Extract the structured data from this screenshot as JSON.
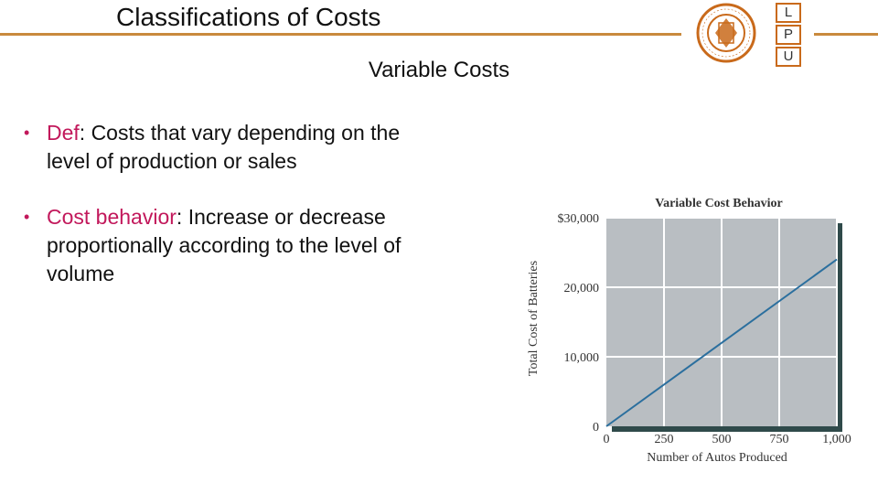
{
  "slide": {
    "title": "Classifications of Costs",
    "subtitle": "Variable Costs",
    "bullets": [
      {
        "term": "Def",
        "text": ": Costs that vary depending on the level of production or sales"
      },
      {
        "term": "Cost behavior",
        "text": ": Increase or decrease proportionally according to the level of volume"
      }
    ]
  },
  "logo": {
    "seal_text_top": "LOVELY PROFESSIONAL UNIVERSITY",
    "seal_text_bottom": "PUNJAB (INDIA)",
    "letters": [
      "L",
      "P",
      "U"
    ]
  },
  "colors": {
    "accent_rule": "#c98a3d",
    "term": "#c2185b",
    "chart_plot": "#b9bec2",
    "chart_shadow": "#2f4a4a",
    "line": "#2b6f9e"
  },
  "chart_data": {
    "type": "line",
    "title": "Variable Cost Behavior",
    "xlabel": "Number of Autos Produced",
    "ylabel": "Total Cost of Batteries",
    "x": [
      0,
      1000
    ],
    "series": [
      {
        "values": [
          0,
          24000
        ]
      }
    ],
    "xlim": [
      0,
      1000
    ],
    "ylim": [
      0,
      30000
    ],
    "xticks": [
      0,
      250,
      500,
      750,
      1000
    ],
    "xtick_labels": [
      "0",
      "250",
      "500",
      "750",
      "1,000"
    ],
    "yticks": [
      0,
      10000,
      20000,
      30000
    ],
    "ytick_labels": [
      "0",
      "10,000",
      "20,000",
      "$30,000"
    ],
    "grid": true
  }
}
